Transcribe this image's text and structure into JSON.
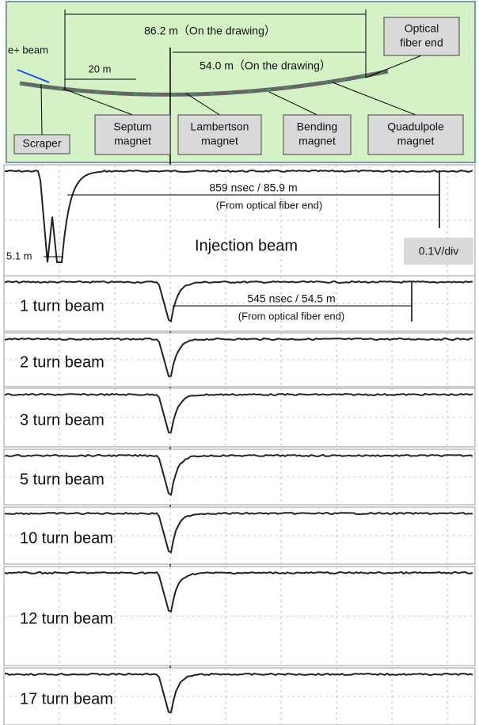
{
  "layout": {
    "beam_label": "e+ beam",
    "scale_label": "20 m",
    "dist_full": "86.2 m（On the drawing）",
    "dist_lambertson": "54.0 m（On the drawing）",
    "boxes": [
      {
        "lines": [
          "Optical",
          "fiber end"
        ]
      },
      {
        "lines": [
          "Scraper"
        ]
      },
      {
        "lines": [
          "Septum",
          "magnet"
        ]
      },
      {
        "lines": [
          "Lambertson",
          "magnet"
        ]
      },
      {
        "lines": [
          "Bending",
          "magnet"
        ]
      },
      {
        "lines": [
          "Quadulpole",
          "magnet"
        ]
      }
    ]
  },
  "traces": [
    {
      "label": "Injection beam",
      "notes": [
        "859 nsec / 85.9 m",
        "(From optical fiber end)",
        "5.1 m",
        "0.1V/div"
      ]
    },
    {
      "label": "1 turn beam",
      "notes": [
        "545 nsec / 54.5 m",
        "(From optical fiber end)"
      ]
    },
    {
      "label": "2 turn beam"
    },
    {
      "label": "3 turn beam"
    },
    {
      "label": "5 turn beam"
    },
    {
      "label": "10 turn beam"
    },
    {
      "label": "12 turn beam"
    },
    {
      "label": "17 turn beam"
    }
  ]
}
